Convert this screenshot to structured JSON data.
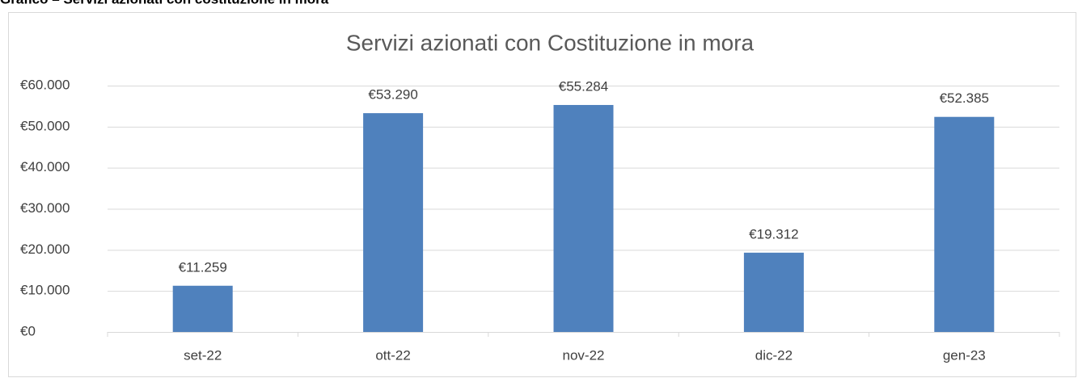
{
  "heading": "Grafico – Servizi azionati con costituzione in mora",
  "chart_data": {
    "type": "bar",
    "title": "Servizi azionati con Costituzione in  mora",
    "categories": [
      "set-22",
      "ott-22",
      "nov-22",
      "dic-22",
      "gen-23"
    ],
    "values": [
      11259,
      53290,
      55284,
      19312,
      52385
    ],
    "value_labels": [
      "€11.259",
      "€53.290",
      "€55.284",
      "€19.312",
      "€52.385"
    ],
    "color": "#4f81bd",
    "ylim": [
      0,
      60000
    ],
    "yticks": [
      {
        "value": 0,
        "label": "€0"
      },
      {
        "value": 10000,
        "label": "€10.000"
      },
      {
        "value": 20000,
        "label": "€20.000"
      },
      {
        "value": 30000,
        "label": "€30.000"
      },
      {
        "value": 40000,
        "label": "€40.000"
      },
      {
        "value": 50000,
        "label": "€50.000"
      },
      {
        "value": 60000,
        "label": "€60.000"
      }
    ],
    "grid": true
  }
}
